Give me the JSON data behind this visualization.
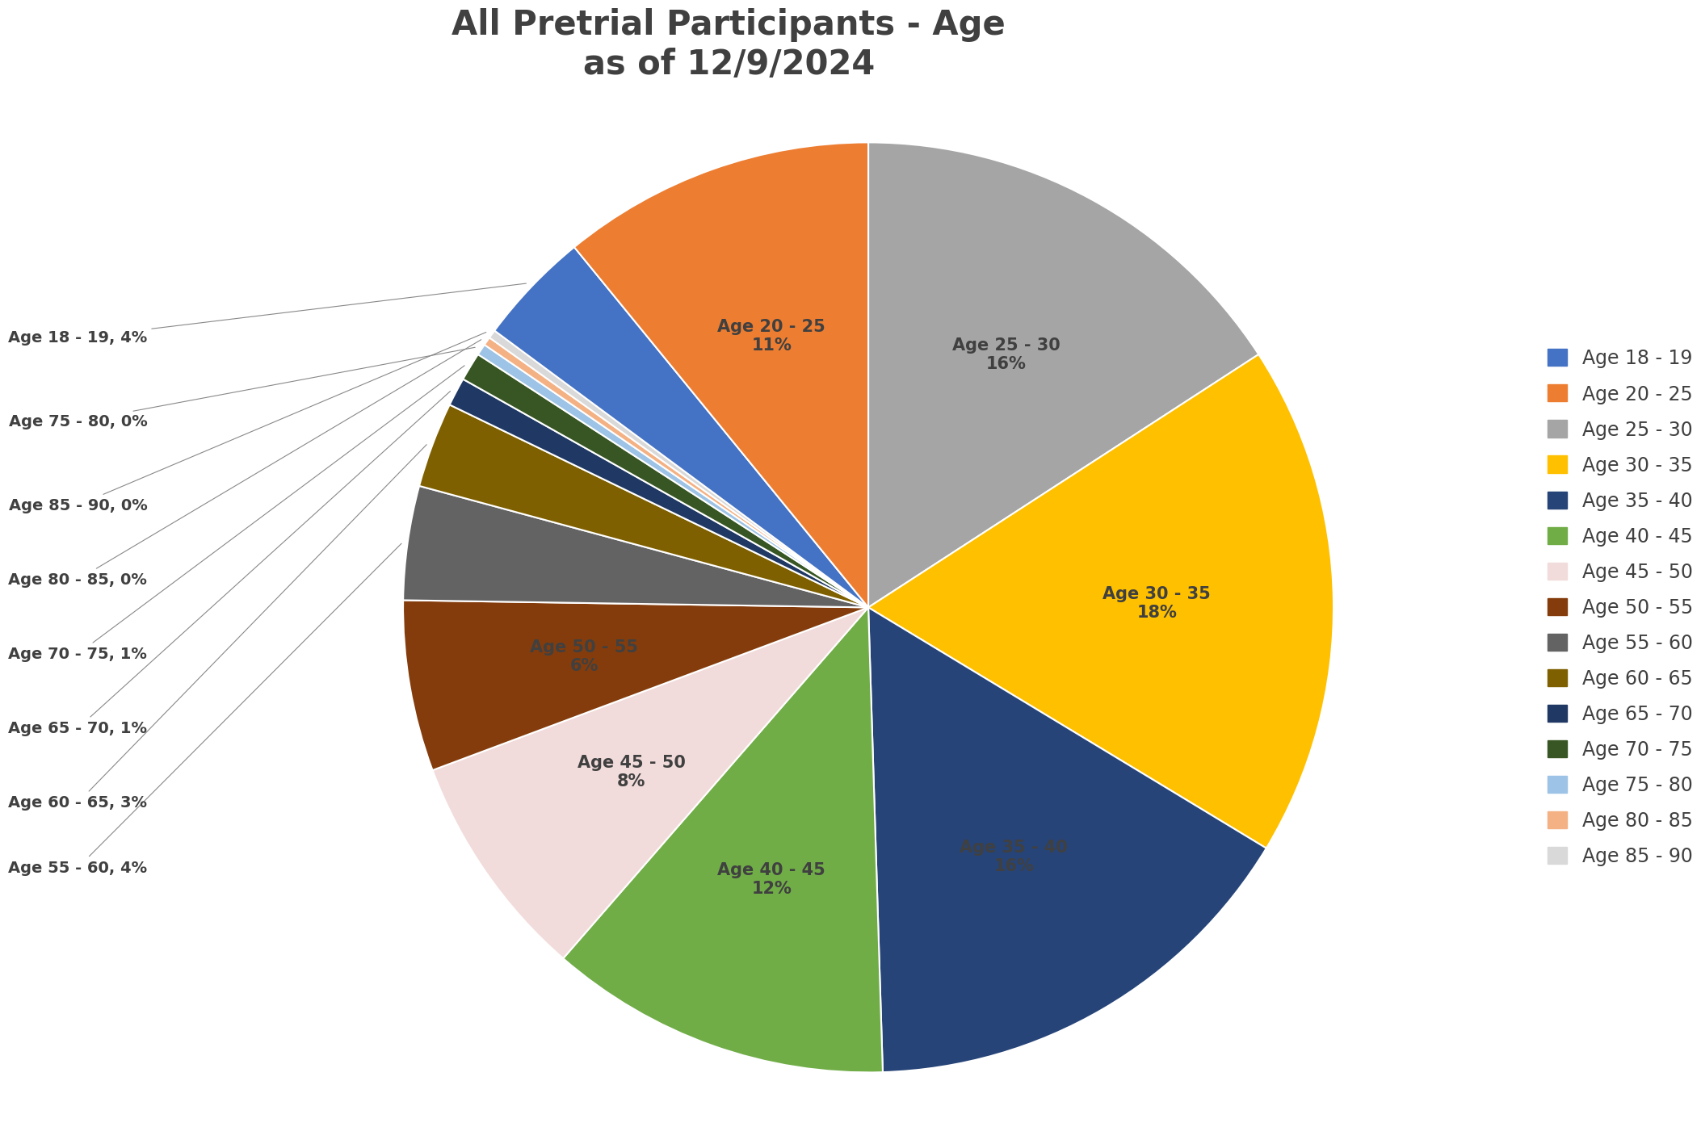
{
  "title": "All Pretrial Participants - Age\nas of 12/9/2024",
  "slices": [
    {
      "label": "Age 25 - 30",
      "pct": 16,
      "color": "#A5A5A5",
      "legend": "Age 25 - 30"
    },
    {
      "label": "Age 30 - 35",
      "pct": 18,
      "color": "#FFC000",
      "legend": "Age 30 - 35"
    },
    {
      "label": "Age 35 - 40",
      "pct": 16,
      "color": "#264478",
      "legend": "Age 35 - 40"
    },
    {
      "label": "Age 40 - 45",
      "pct": 12,
      "color": "#70AD47",
      "legend": "Age 40 - 45"
    },
    {
      "label": "Age 45 - 50",
      "pct": 8,
      "color": "#F2DCDB",
      "legend": "Age 45 - 50"
    },
    {
      "label": "Age 50 - 55",
      "pct": 6,
      "color": "#843C0C",
      "legend": "Age 50 - 55"
    },
    {
      "label": "Age 55 - 60",
      "pct": 4,
      "color": "#636363",
      "legend": "Age 55 - 60"
    },
    {
      "label": "Age 60 - 65",
      "pct": 3,
      "color": "#7F6000",
      "legend": "Age 60 - 65"
    },
    {
      "label": "Age 65 - 70",
      "pct": 1,
      "color": "#1F3864",
      "legend": "Age 65 - 70"
    },
    {
      "label": "Age 70 - 75",
      "pct": 1,
      "color": "#375623",
      "legend": "Age 70 - 75"
    },
    {
      "label": "Age 75 - 80",
      "pct": 0.4,
      "color": "#9DC3E6",
      "legend": "Age 75 - 80"
    },
    {
      "label": "Age 80 - 85",
      "pct": 0.3,
      "color": "#F4B183",
      "legend": "Age 80 - 85"
    },
    {
      "label": "Age 85 - 90",
      "pct": 0.3,
      "color": "#D9D9D9",
      "legend": "Age 85 - 90"
    },
    {
      "label": "Age 18 - 19",
      "pct": 4,
      "color": "#4472C4",
      "legend": "Age 18 - 19"
    },
    {
      "label": "Age 20 - 25",
      "pct": 11,
      "color": "#ED7D31",
      "legend": "Age 20 - 25"
    }
  ],
  "legend_order": [
    {
      "label": "Age 18 - 19",
      "color": "#4472C4"
    },
    {
      "label": "Age 20 - 25",
      "color": "#ED7D31"
    },
    {
      "label": "Age 25 - 30",
      "color": "#A5A5A5"
    },
    {
      "label": "Age 30 - 35",
      "color": "#FFC000"
    },
    {
      "label": "Age 35 - 40",
      "color": "#264478"
    },
    {
      "label": "Age 40 - 45",
      "color": "#70AD47"
    },
    {
      "label": "Age 45 - 50",
      "color": "#F2DCDB"
    },
    {
      "label": "Age 50 - 55",
      "color": "#843C0C"
    },
    {
      "label": "Age 55 - 60",
      "color": "#636363"
    },
    {
      "label": "Age 60 - 65",
      "color": "#7F6000"
    },
    {
      "label": "Age 65 - 70",
      "color": "#1F3864"
    },
    {
      "label": "Age 70 - 75",
      "color": "#375623"
    },
    {
      "label": "Age 75 - 80",
      "color": "#9DC3E6"
    },
    {
      "label": "Age 80 - 85",
      "color": "#F4B183"
    },
    {
      "label": "Age 85 - 90",
      "color": "#D9D9D9"
    }
  ],
  "title_fontsize": 30,
  "label_fontsize": 15,
  "legend_fontsize": 17,
  "background_color": "#FFFFFF",
  "label_color": "#404040",
  "inside_labels": [
    "Age 25 - 30",
    "Age 30 - 35",
    "Age 35 - 40",
    "Age 40 - 45",
    "Age 45 - 50",
    "Age 50 - 55",
    "Age 20 - 25"
  ],
  "outside_labels": [
    "Age 55 - 60",
    "Age 60 - 65",
    "Age 65 - 70",
    "Age 70 - 75",
    "Age 75 - 80",
    "Age 80 - 85",
    "Age 85 - 90",
    "Age 18 - 19"
  ],
  "pct_display": {
    "Age 25 - 30": "16%",
    "Age 30 - 35": "18%",
    "Age 35 - 40": "16%",
    "Age 40 - 45": "12%",
    "Age 45 - 50": "8%",
    "Age 50 - 55": "6%",
    "Age 55 - 60": "4%",
    "Age 60 - 65": "3%",
    "Age 65 - 70": "1%",
    "Age 70 - 75": "1%",
    "Age 75 - 80": "0%",
    "Age 80 - 85": "0%",
    "Age 85 - 90": "0%",
    "Age 18 - 19": "4%",
    "Age 20 - 25": "11%"
  }
}
